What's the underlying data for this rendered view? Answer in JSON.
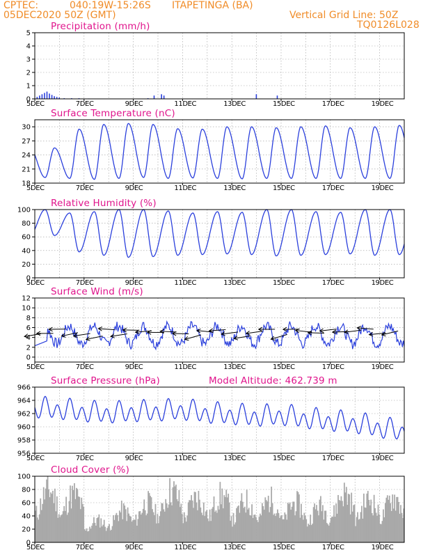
{
  "header": {
    "source": "CPTEC:",
    "coords": "040:19W-15:26S",
    "station": "ITAPETINGA (BA)",
    "init": "05DEC2020 50Z (GMT)",
    "grid_label": "Vertical Grid Line: 50Z",
    "code": "TQ0126L028"
  },
  "model_altitude_label": "Model Altitude: 462.739 m",
  "colors": {
    "header": "#f08c28",
    "title": "#e0148c",
    "line": "#2a3fdc",
    "cloud": "#a9a9a9",
    "arrow": "#000000"
  },
  "chart_data": [
    {
      "type": "bar",
      "title": "Precipitation (mm/h)",
      "ylim": [
        0,
        5
      ],
      "yticks": [
        0,
        1,
        2,
        3,
        4,
        5
      ],
      "x_labels": [
        "5DEC",
        "7DEC",
        "9DEC",
        "11DEC",
        "13DEC",
        "15DEC",
        "17DEC",
        "19DEC"
      ],
      "grid": "dotted",
      "bars": [
        {
          "day": 0.1,
          "value": 0.15
        },
        {
          "day": 0.2,
          "value": 0.25
        },
        {
          "day": 0.3,
          "value": 0.35
        },
        {
          "day": 0.4,
          "value": 0.45
        },
        {
          "day": 0.5,
          "value": 0.55
        },
        {
          "day": 0.6,
          "value": 0.4
        },
        {
          "day": 0.7,
          "value": 0.3
        },
        {
          "day": 0.8,
          "value": 0.2
        },
        {
          "day": 0.9,
          "value": 0.15
        },
        {
          "day": 1.0,
          "value": 0.1
        },
        {
          "day": 1.2,
          "value": 0.05
        },
        {
          "day": 1.5,
          "value": 0.05
        },
        {
          "day": 1.8,
          "value": 0.05
        },
        {
          "day": 2.2,
          "value": 0.03
        },
        {
          "day": 4.6,
          "value": 0.05
        },
        {
          "day": 4.85,
          "value": 0.25
        },
        {
          "day": 5.15,
          "value": 0.35
        },
        {
          "day": 5.25,
          "value": 0.25
        },
        {
          "day": 9.0,
          "value": 0.35
        },
        {
          "day": 9.85,
          "value": 0.25
        }
      ]
    },
    {
      "type": "line",
      "title": "Surface Temperature (nC)",
      "ylim": [
        18,
        31.5
      ],
      "yticks": [
        18,
        21,
        24,
        27,
        30
      ],
      "x_labels": [
        "5DEC",
        "7DEC",
        "9DEC",
        "11DEC",
        "13DEC",
        "15DEC",
        "17DEC",
        "19DEC"
      ],
      "grid": "dotted",
      "series": [
        {
          "min": [
            19.2,
            19.0,
            18.8,
            19.0,
            19.2,
            19.0,
            19.1,
            19.0,
            18.9,
            19.0,
            19.0,
            19.0,
            19.0,
            19.0,
            19.0,
            19.0
          ],
          "max": [
            25.5,
            29.5,
            30.5,
            30.7,
            30.5,
            29.6,
            29.5,
            30.0,
            30.0,
            29.8,
            30.0,
            30.2,
            29.8,
            30.0,
            30.3,
            30.5
          ]
        }
      ]
    },
    {
      "type": "line",
      "title": "Relative Humidity (%)",
      "ylim": [
        0,
        100
      ],
      "yticks": [
        0,
        20,
        40,
        60,
        80,
        100
      ],
      "x_labels": [
        "5DEC",
        "7DEC",
        "9DEC",
        "11DEC",
        "13DEC",
        "15DEC",
        "17DEC",
        "19DEC"
      ],
      "grid": "dotted",
      "series": [
        {
          "max": [
            100,
            95,
            97,
            100,
            100,
            98,
            95,
            97,
            96,
            100,
            100,
            97,
            96,
            100,
            100,
            100
          ],
          "min": [
            62,
            38,
            33,
            30,
            31,
            33,
            34,
            35,
            34,
            32,
            33,
            34,
            35,
            33,
            34,
            35
          ]
        }
      ]
    },
    {
      "type": "line",
      "title": "Surface Wind (m/s)",
      "ylim": [
        -1,
        12
      ],
      "yticks": [
        0,
        2,
        4,
        6,
        8,
        10,
        12
      ],
      "x_labels": [
        "5DEC",
        "7DEC",
        "9DEC",
        "11DEC",
        "13DEC",
        "15DEC",
        "17DEC",
        "19DEC"
      ],
      "grid": "dotted",
      "arrows": "wind direction vectors every 6 hours, blowing from the east"
    },
    {
      "type": "line",
      "title": "Surface Pressure (hPa)",
      "ylim": [
        956,
        966
      ],
      "yticks": [
        956,
        958,
        960,
        962,
        964,
        966
      ],
      "x_labels": [
        "5DEC",
        "7DEC",
        "9DEC",
        "11DEC",
        "13DEC",
        "15DEC",
        "17DEC",
        "19DEC"
      ],
      "grid": "dotted",
      "series": [
        {
          "mean": [
            962.8,
            962.6,
            962.2,
            962.0,
            962.2,
            962.3,
            962.5,
            962.0,
            961.8,
            961.5,
            961.7,
            961.2,
            960.8,
            960.5,
            959.8,
            959.2
          ]
        }
      ]
    },
    {
      "type": "bar",
      "title": "Cloud Cover (%)",
      "ylim": [
        0,
        100
      ],
      "yticks": [
        0,
        20,
        40,
        60,
        80,
        100
      ],
      "x_labels": [
        "5DEC",
        "7DEC",
        "9DEC",
        "11DEC",
        "13DEC",
        "15DEC",
        "17DEC",
        "19DEC"
      ],
      "grid": "dotted",
      "series": [
        {
          "daily_peak": [
            96,
            88,
            40,
            58,
            72,
            95,
            82,
            85,
            75,
            78,
            72,
            66,
            90,
            78,
            82,
            97
          ]
        }
      ]
    }
  ]
}
